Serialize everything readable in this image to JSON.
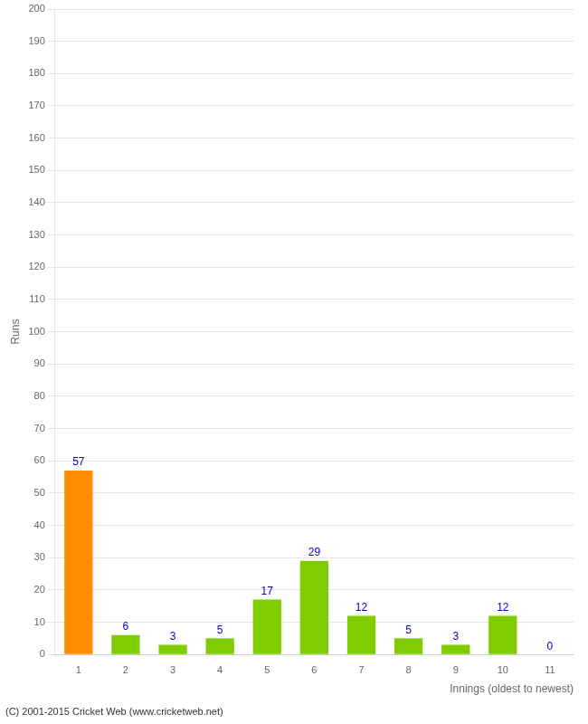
{
  "chart_data": {
    "type": "bar",
    "categories": [
      "1",
      "2",
      "3",
      "4",
      "5",
      "6",
      "7",
      "8",
      "9",
      "10",
      "11"
    ],
    "values": [
      57,
      6,
      3,
      5,
      17,
      29,
      12,
      5,
      3,
      12,
      0
    ],
    "colors": [
      "#FF8C00",
      "#7FCC00",
      "#7FCC00",
      "#7FCC00",
      "#7FCC00",
      "#7FCC00",
      "#7FCC00",
      "#7FCC00",
      "#7FCC00",
      "#7FCC00",
      "#7FCC00"
    ],
    "xlabel": "Innings (oldest to newest)",
    "ylabel": "Runs",
    "ylim": [
      0,
      200
    ],
    "yticks": [
      0,
      10,
      20,
      30,
      40,
      50,
      60,
      70,
      80,
      90,
      100,
      110,
      120,
      130,
      140,
      150,
      160,
      170,
      180,
      190,
      200
    ],
    "grid": true,
    "data_labels": true,
    "annotations": [
      "(C) 2001-2015 Cricket Web (www.cricketweb.net)"
    ]
  }
}
